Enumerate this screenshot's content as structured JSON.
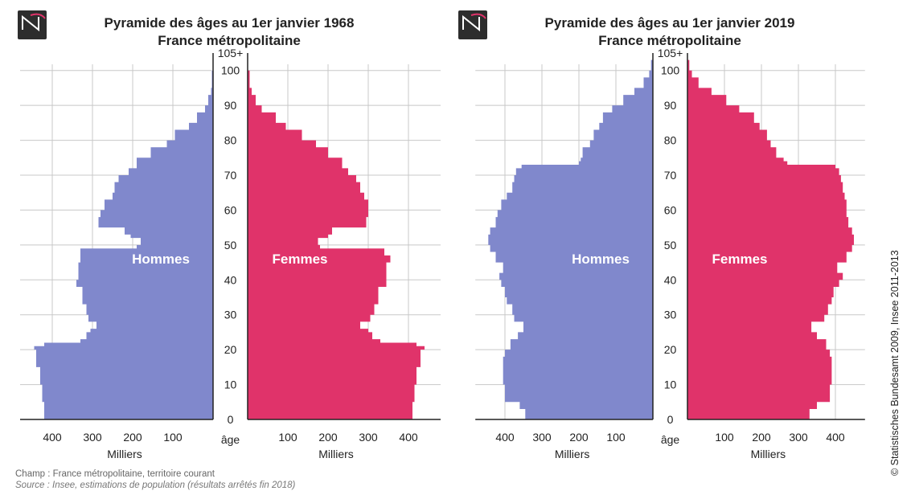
{
  "logo_text": "INSEE",
  "copyright": "© Statistisches Bundesamt 2009, Insee 2011-2013",
  "footer": {
    "champ": "Champ : France métropolitaine, territoire courant",
    "source": "Source : Insee, estimations de population (résultats arrêtés fin 2018)"
  },
  "colors": {
    "hommes": "#8088cc",
    "femmes": "#e0336a",
    "grid": "#c8c8c8",
    "axis": "#222222"
  },
  "chart_data": [
    {
      "type": "bar",
      "orientation": "population-pyramid",
      "title": "Pyramide des âges au 1er janvier 1968",
      "subtitle": "France métropolitaine",
      "xlabel": "Milliers",
      "ylabel": "âge",
      "age_ticks": [
        "0",
        "10",
        "20",
        "30",
        "40",
        "50",
        "60",
        "70",
        "80",
        "90",
        "100",
        "105+"
      ],
      "x_ticks": [
        400,
        300,
        200,
        100
      ],
      "xlim": [
        0,
        480
      ],
      "ylim": [
        0,
        105
      ],
      "legend": [
        "Hommes",
        "Femmes"
      ],
      "x": [
        0,
        5,
        10,
        15,
        20,
        21,
        22,
        23,
        25,
        26,
        27,
        28,
        30,
        33,
        35,
        38,
        40,
        43,
        45,
        46,
        47,
        48,
        49,
        50,
        52,
        53,
        55,
        58,
        60,
        63,
        65,
        68,
        70,
        72,
        75,
        78,
        80,
        83,
        85,
        88,
        90,
        93,
        95,
        100,
        105
      ],
      "series": [
        {
          "name": "Hommes",
          "values": [
            420,
            425,
            430,
            440,
            445,
            420,
            330,
            315,
            305,
            290,
            290,
            310,
            315,
            325,
            325,
            340,
            335,
            335,
            330,
            330,
            330,
            330,
            190,
            180,
            205,
            220,
            285,
            280,
            270,
            250,
            245,
            235,
            210,
            190,
            155,
            115,
            95,
            60,
            40,
            20,
            12,
            5,
            3,
            1,
            0
          ]
        },
        {
          "name": "Femmes",
          "values": [
            410,
            415,
            420,
            430,
            440,
            420,
            330,
            310,
            300,
            280,
            280,
            305,
            315,
            325,
            325,
            345,
            345,
            345,
            355,
            355,
            340,
            340,
            180,
            175,
            200,
            210,
            295,
            300,
            300,
            290,
            280,
            270,
            250,
            235,
            200,
            170,
            135,
            95,
            70,
            35,
            20,
            10,
            5,
            1,
            0
          ]
        }
      ]
    },
    {
      "type": "bar",
      "orientation": "population-pyramid",
      "title": "Pyramide des âges au 1er janvier 2019",
      "subtitle": "France métropolitaine",
      "xlabel": "Milliers",
      "ylabel": "âge",
      "age_ticks": [
        "0",
        "10",
        "20",
        "30",
        "40",
        "50",
        "60",
        "70",
        "80",
        "90",
        "100",
        "105+"
      ],
      "x_ticks": [
        400,
        300,
        200,
        100
      ],
      "xlim": [
        0,
        480
      ],
      "ylim": [
        0,
        105
      ],
      "legend": [
        "Hommes",
        "Femmes"
      ],
      "x": [
        0,
        3,
        5,
        10,
        15,
        18,
        20,
        23,
        25,
        28,
        30,
        33,
        35,
        38,
        40,
        42,
        45,
        48,
        50,
        53,
        55,
        58,
        60,
        63,
        65,
        68,
        70,
        72,
        73,
        74,
        75,
        78,
        80,
        83,
        85,
        88,
        90,
        93,
        95,
        98,
        100,
        103,
        105
      ],
      "series": [
        {
          "name": "Hommes",
          "values": [
            345,
            360,
            400,
            405,
            405,
            400,
            385,
            365,
            350,
            375,
            380,
            395,
            400,
            410,
            415,
            405,
            425,
            440,
            445,
            440,
            425,
            420,
            410,
            395,
            380,
            375,
            370,
            355,
            200,
            195,
            190,
            170,
            160,
            145,
            135,
            110,
            80,
            50,
            25,
            10,
            5,
            1,
            0
          ]
        },
        {
          "name": "Femmes",
          "values": [
            330,
            350,
            385,
            390,
            390,
            385,
            375,
            350,
            335,
            370,
            380,
            390,
            395,
            410,
            420,
            405,
            430,
            445,
            450,
            445,
            435,
            430,
            430,
            425,
            420,
            415,
            410,
            400,
            270,
            260,
            240,
            225,
            215,
            195,
            180,
            140,
            105,
            65,
            30,
            12,
            5,
            1,
            0
          ]
        }
      ]
    }
  ]
}
